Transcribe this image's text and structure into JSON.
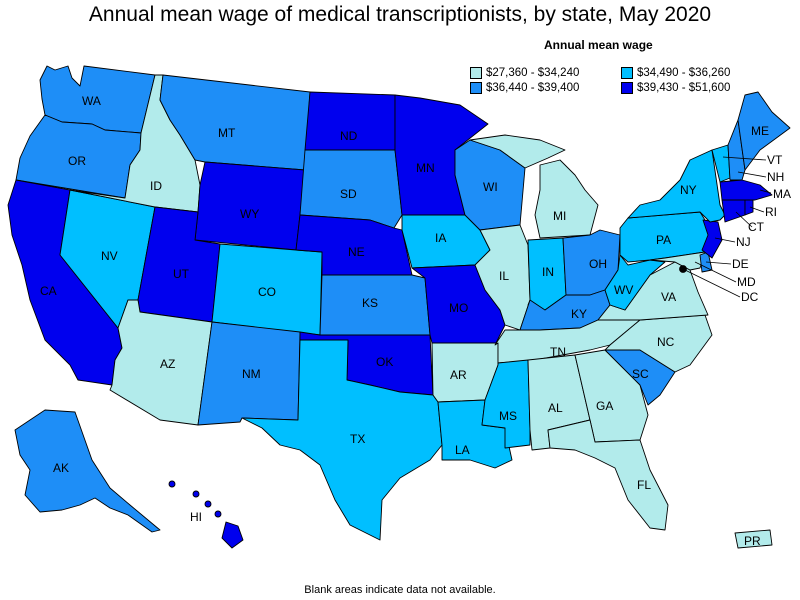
{
  "title": "Annual mean wage of medical transcriptionists, by state, May 2020",
  "legend": {
    "title": "Annual mean wage",
    "items": [
      {
        "label": "$27,360 - $34,240",
        "color": "#b2ebeb"
      },
      {
        "label": "$34,490 - $36,260",
        "color": "#00bfff"
      },
      {
        "label": "$36,440 - $39,400",
        "color": "#1e8ef7"
      },
      {
        "label": "$39,430 - $51,600",
        "color": "#0000ee"
      }
    ]
  },
  "footnote": "Blank areas indicate data not available.",
  "map_data": {
    "type": "choropleth",
    "region": "United States",
    "states": {
      "WA": 2,
      "OR": 2,
      "CA": 3,
      "NV": 1,
      "ID": 0,
      "MT": 2,
      "WY": 3,
      "UT": 3,
      "AZ": 0,
      "CO": 1,
      "NM": 2,
      "ND": 3,
      "SD": 2,
      "NE": 3,
      "KS": 2,
      "OK": 3,
      "TX": 1,
      "MN": 3,
      "IA": 1,
      "MO": 3,
      "AR": 0,
      "LA": 1,
      "WI": 2,
      "IL": 0,
      "MI": 0,
      "IN": 1,
      "OH": 2,
      "KY": 2,
      "TN": 0,
      "MS": 1,
      "AL": 0,
      "GA": 0,
      "FL": 0,
      "SC": 2,
      "NC": 0,
      "VA": 0,
      "WV": 1,
      "PA": 1,
      "NY": 1,
      "VT": 1,
      "NH": 2,
      "ME": 2,
      "MA": 3,
      "RI": 3,
      "CT": 3,
      "NJ": 3,
      "DE": 2,
      "MD": 0,
      "DC": 3,
      "AK": 2,
      "HI": 3,
      "PR": 0
    }
  }
}
